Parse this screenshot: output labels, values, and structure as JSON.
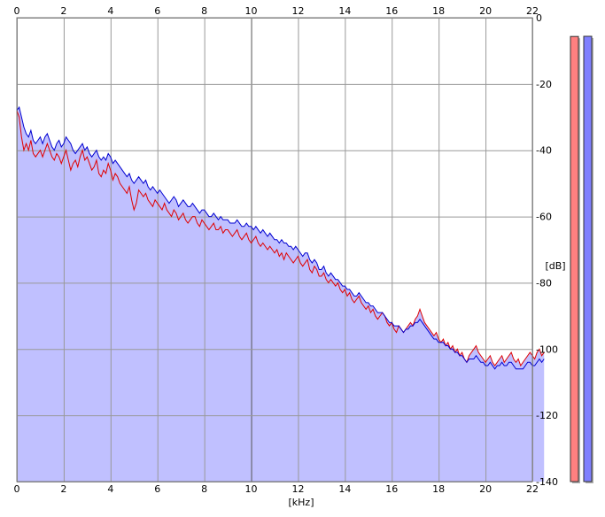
{
  "chart_data": {
    "type": "area",
    "title": "",
    "xlabel": "[kHz]",
    "ylabel": "[dB]",
    "xlim": [
      0,
      22
    ],
    "ylim": [
      -140,
      0
    ],
    "x_ticks": [
      0,
      2,
      4,
      6,
      8,
      10,
      12,
      14,
      16,
      18,
      20,
      22
    ],
    "y_ticks": [
      0,
      -20,
      -40,
      -60,
      -80,
      -100,
      -120,
      -140
    ],
    "grid": true,
    "x_step_khz": 0.1,
    "series": [
      {
        "color": "#e00000",
        "values": [
          -28,
          -30,
          -36,
          -40,
          -38,
          -40,
          -37,
          -41,
          -42,
          -41,
          -40,
          -42,
          -40,
          -38,
          -40,
          -42,
          -43,
          -41,
          -42,
          -44,
          -42,
          -40,
          -43,
          -46,
          -44,
          -43,
          -45,
          -42,
          -40,
          -43,
          -42,
          -44,
          -46,
          -45,
          -43,
          -47,
          -48,
          -46,
          -47,
          -44,
          -46,
          -49,
          -47,
          -48,
          -50,
          -51,
          -52,
          -53,
          -51,
          -55,
          -58,
          -56,
          -52,
          -53,
          -54,
          -53,
          -55,
          -56,
          -57,
          -55,
          -56,
          -57,
          -58,
          -56,
          -58,
          -59,
          -60,
          -58,
          -59,
          -61,
          -60,
          -59,
          -61,
          -62,
          -61,
          -60,
          -60,
          -62,
          -63,
          -61,
          -62,
          -63,
          -64,
          -63,
          -62,
          -64,
          -64,
          -63,
          -65,
          -64,
          -64,
          -65,
          -66,
          -65,
          -64,
          -66,
          -67,
          -66,
          -65,
          -67,
          -68,
          -67,
          -66,
          -68,
          -69,
          -68,
          -69,
          -70,
          -69,
          -70,
          -71,
          -70,
          -72,
          -71,
          -73,
          -71,
          -72,
          -73,
          -74,
          -73,
          -72,
          -74,
          -75,
          -74,
          -73,
          -76,
          -77,
          -75,
          -76,
          -78,
          -78,
          -77,
          -79,
          -80,
          -79,
          -80,
          -81,
          -80,
          -82,
          -83,
          -82,
          -84,
          -83,
          -85,
          -86,
          -85,
          -84,
          -86,
          -87,
          -88,
          -87,
          -89,
          -88,
          -90,
          -91,
          -90,
          -89,
          -90,
          -92,
          -93,
          -92,
          -94,
          -95,
          -93,
          -94,
          -95,
          -94,
          -93,
          -92,
          -93,
          -91,
          -90,
          -88,
          -90,
          -92,
          -93,
          -94,
          -95,
          -96,
          -95,
          -97,
          -98,
          -97,
          -99,
          -98,
          -100,
          -99,
          -101,
          -100,
          -102,
          -101,
          -103,
          -104,
          -102,
          -101,
          -100,
          -99,
          -101,
          -102,
          -103,
          -104,
          -103,
          -102,
          -104,
          -105,
          -104,
          -103,
          -102,
          -104,
          -103,
          -102,
          -101,
          -103,
          -104,
          -103,
          -105,
          -104,
          -103,
          -102,
          -101,
          -102,
          -103,
          -101,
          -100,
          -102,
          -101
        ]
      },
      {
        "color": "#0000d0",
        "values": [
          -28,
          -27,
          -30,
          -33,
          -35,
          -36,
          -34,
          -37,
          -38,
          -37,
          -36,
          -38,
          -36,
          -35,
          -37,
          -39,
          -40,
          -38,
          -37,
          -39,
          -38,
          -36,
          -37,
          -38,
          -40,
          -41,
          -40,
          -39,
          -38,
          -40,
          -39,
          -41,
          -42,
          -41,
          -40,
          -42,
          -43,
          -42,
          -43,
          -41,
          -42,
          -44,
          -43,
          -44,
          -45,
          -46,
          -47,
          -48,
          -47,
          -49,
          -50,
          -49,
          -48,
          -49,
          -50,
          -49,
          -51,
          -52,
          -51,
          -52,
          -53,
          -52,
          -53,
          -54,
          -55,
          -56,
          -55,
          -54,
          -55,
          -57,
          -56,
          -55,
          -56,
          -57,
          -57,
          -56,
          -57,
          -58,
          -59,
          -58,
          -58,
          -59,
          -60,
          -60,
          -59,
          -60,
          -61,
          -60,
          -61,
          -61,
          -61,
          -62,
          -62,
          -62,
          -61,
          -62,
          -63,
          -63,
          -62,
          -63,
          -63,
          -64,
          -63,
          -64,
          -65,
          -64,
          -65,
          -66,
          -65,
          -66,
          -67,
          -67,
          -68,
          -67,
          -68,
          -68,
          -69,
          -69,
          -70,
          -69,
          -70,
          -71,
          -72,
          -71,
          -71,
          -73,
          -74,
          -73,
          -74,
          -76,
          -76,
          -75,
          -77,
          -78,
          -77,
          -78,
          -79,
          -79,
          -80,
          -81,
          -81,
          -82,
          -82,
          -83,
          -84,
          -84,
          -83,
          -84,
          -85,
          -86,
          -86,
          -87,
          -87,
          -88,
          -89,
          -89,
          -89,
          -90,
          -91,
          -92,
          -92,
          -93,
          -93,
          -93,
          -94,
          -95,
          -94,
          -94,
          -93,
          -93,
          -92,
          -92,
          -91,
          -92,
          -93,
          -94,
          -95,
          -96,
          -97,
          -97,
          -98,
          -98,
          -98,
          -99,
          -99,
          -100,
          -100,
          -101,
          -101,
          -102,
          -102,
          -103,
          -104,
          -103,
          -103,
          -103,
          -102,
          -103,
          -104,
          -104,
          -105,
          -105,
          -104,
          -105,
          -106,
          -105,
          -105,
          -104,
          -105,
          -105,
          -104,
          -104,
          -105,
          -106,
          -106,
          -106,
          -106,
          -105,
          -104,
          -104,
          -105,
          -105,
          -104,
          -103,
          -104,
          -103
        ]
      }
    ],
    "level_meters": [
      {
        "color": "#ff8080",
        "level_db": -6
      },
      {
        "color": "#8080ff",
        "level_db": -5
      }
    ],
    "colors": {
      "area_fill": "#c0c0ff",
      "grid_line": "#999999",
      "zero_line": "#555555"
    }
  }
}
